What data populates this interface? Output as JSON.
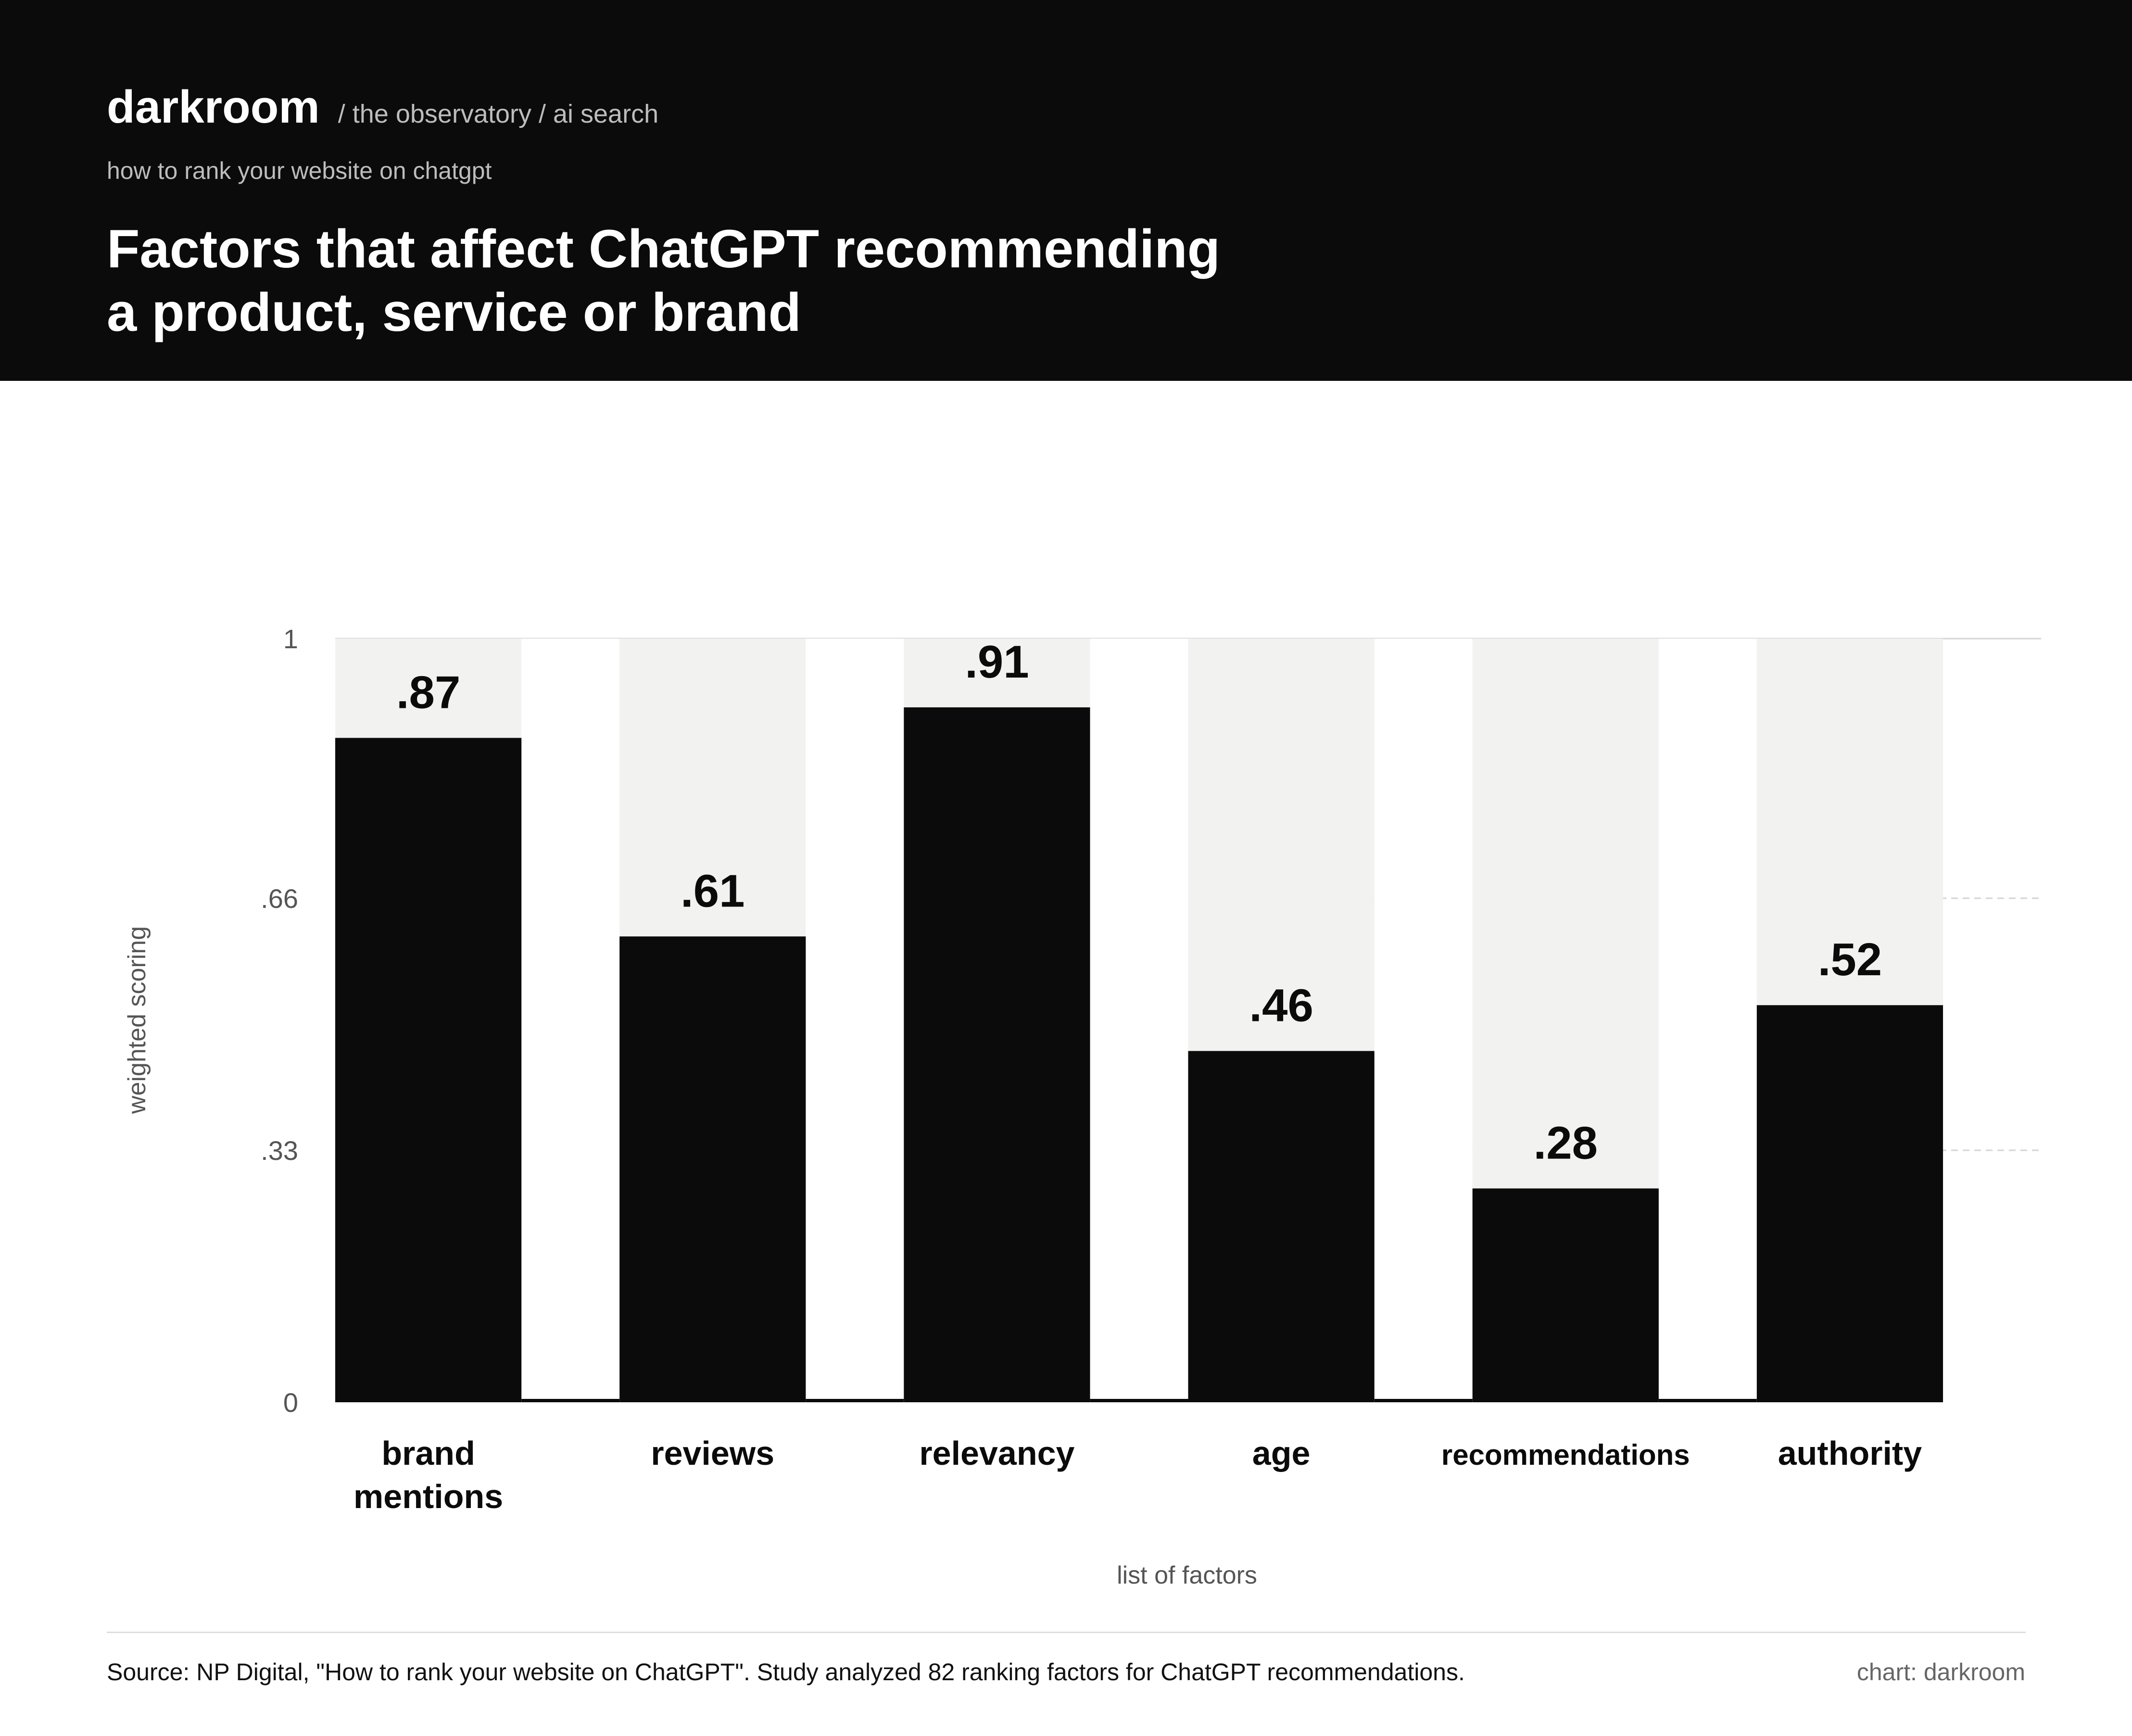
{
  "header": {
    "brand": "darkroom",
    "breadcrumb": "/ the observatory / ai search",
    "subtitle": "how to rank your website on chatgpt",
    "title_lines": [
      "Factors that affect ChatGPT recommending",
      "a product, service or brand"
    ]
  },
  "chart_data": {
    "type": "bar",
    "title": "Factors that affect ChatGPT recommending a product, service or brand",
    "xlabel": "list of factors",
    "ylabel": "weighted scoring",
    "ylim": [
      0,
      1
    ],
    "yticks": [
      {
        "value": 0,
        "label": "0"
      },
      {
        "value": 0.33,
        "label": ".33"
      },
      {
        "value": 0.66,
        "label": ".66"
      },
      {
        "value": 1,
        "label": "1"
      }
    ],
    "categories": [
      [
        "brand",
        "mentions"
      ],
      [
        "reviews"
      ],
      [
        "relevancy"
      ],
      [
        "age"
      ],
      [
        "recommendations"
      ],
      [
        "authority"
      ]
    ],
    "values": [
      0.87,
      0.61,
      0.91,
      0.46,
      0.28,
      0.52
    ],
    "value_labels": [
      ".87",
      ".61",
      ".91",
      ".46",
      ".28",
      ".52"
    ],
    "grid": "dashed horizontal",
    "colors": {
      "bar": "#0b0b0b",
      "track": "#f2f2f0",
      "gap": "#ffffff",
      "grid": "#d4d4d4"
    }
  },
  "footer": {
    "source": "Source: NP Digital, \"How to rank your website on ChatGPT\". Study analyzed 82 ranking factors for ChatGPT recommendations.",
    "credit": "chart: darkroom"
  }
}
